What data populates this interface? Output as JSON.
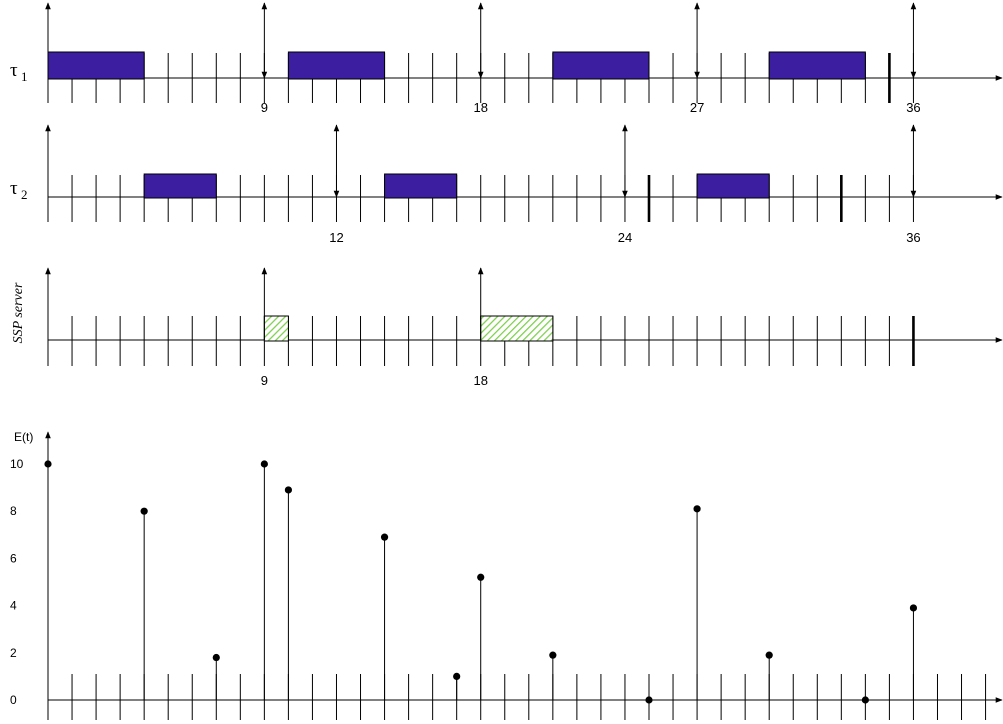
{
  "diagram": {
    "t_max": 40,
    "rows": [
      {
        "name": "tau1",
        "label": "τ",
        "label_sub": "1",
        "releases": [
          0,
          9,
          18,
          27,
          36
        ],
        "tick_labels": [
          "9",
          "18",
          "27",
          "36"
        ],
        "bold_ticks": [
          35
        ],
        "executions": [
          [
            0,
            4
          ],
          [
            10,
            14
          ],
          [
            21,
            25
          ],
          [
            30,
            34
          ]
        ],
        "fill": "#3b1fa0"
      },
      {
        "name": "tau2",
        "label": "τ",
        "label_sub": "2",
        "releases": [
          0,
          12,
          24,
          36
        ],
        "tick_labels": [
          "12",
          "24",
          "36"
        ],
        "bold_ticks": [
          25,
          33
        ],
        "executions": [
          [
            4,
            7
          ],
          [
            14,
            17
          ],
          [
            27,
            30
          ]
        ],
        "fill": "#3b1fa0"
      },
      {
        "name": "ssp-server",
        "label": "SSP server",
        "releases": [
          0,
          9,
          18
        ],
        "tick_labels": [
          "9",
          "18"
        ],
        "bold_ticks": [
          36
        ],
        "executions": [
          [
            9,
            10
          ],
          [
            18,
            21
          ]
        ],
        "fill": "#7ccf4a"
      }
    ]
  },
  "chart_data": {
    "type": "scatter",
    "ylabel": "E(t)",
    "yticks": [
      "0",
      "2",
      "4",
      "6",
      "8",
      "10"
    ],
    "ylim": [
      0,
      10
    ],
    "xlim": [
      0,
      40
    ],
    "points": [
      {
        "x": 0,
        "y": 10
      },
      {
        "x": 4,
        "y": 8
      },
      {
        "x": 7,
        "y": 1.8
      },
      {
        "x": 9,
        "y": 10
      },
      {
        "x": 10,
        "y": 8.9
      },
      {
        "x": 14,
        "y": 6.9
      },
      {
        "x": 17,
        "y": 1
      },
      {
        "x": 18,
        "y": 5.2
      },
      {
        "x": 21,
        "y": 1.9
      },
      {
        "x": 25,
        "y": 0
      },
      {
        "x": 27,
        "y": 8.1
      },
      {
        "x": 30,
        "y": 1.9
      },
      {
        "x": 34,
        "y": 0
      },
      {
        "x": 36,
        "y": 3.9
      }
    ]
  },
  "colors": {
    "axis": "#000000",
    "execution_stroke": "#000000",
    "hatch": "#7ccf4a"
  }
}
